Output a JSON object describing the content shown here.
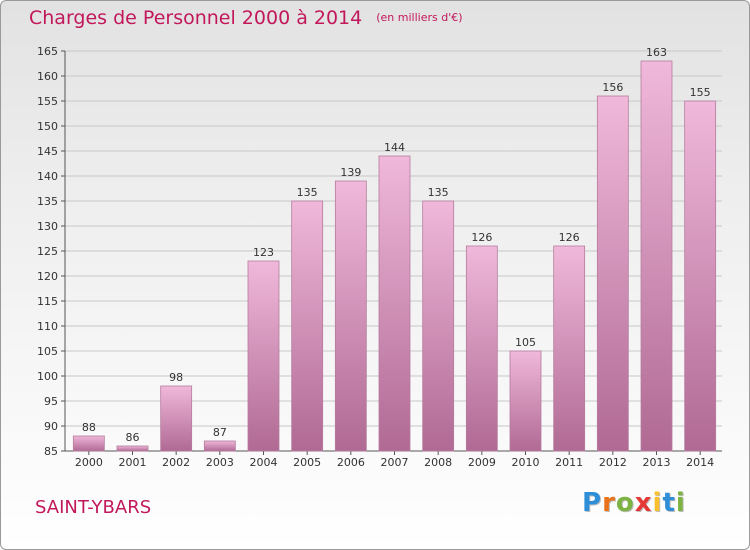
{
  "title": "Charges de Personnel 2000 à 2014",
  "unit_note": "(en milliers d'€)",
  "location": "SAINT-YBARS",
  "logo": {
    "text": "Proxiti",
    "letter_colors": [
      "#2e8fd8",
      "#e8731a",
      "#7cb342",
      "#e53935",
      "#fbc02d",
      "#2e8fd8",
      "#7cb342"
    ]
  },
  "colors": {
    "accent": "#c2185b",
    "bar_light": "#f0b8da",
    "bar_dark": "#b06a94"
  },
  "chart_data": {
    "type": "bar",
    "title": "Charges de Personnel 2000 à 2014",
    "categories": [
      "2000",
      "2001",
      "2002",
      "2003",
      "2004",
      "2005",
      "2006",
      "2007",
      "2008",
      "2009",
      "2010",
      "2011",
      "2012",
      "2013",
      "2014"
    ],
    "values": [
      88,
      86,
      98,
      87,
      123,
      135,
      139,
      144,
      135,
      126,
      105,
      126,
      156,
      163,
      155
    ],
    "ylim": [
      85,
      165
    ],
    "yticks": [
      85,
      90,
      95,
      100,
      105,
      110,
      115,
      120,
      125,
      130,
      135,
      140,
      145,
      150,
      155,
      160,
      165
    ],
    "xlabel": "",
    "ylabel": "",
    "grid": "horizontal",
    "legend": "none"
  }
}
